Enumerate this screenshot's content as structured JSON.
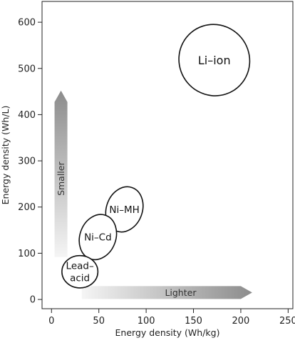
{
  "chart_data": {
    "type": "scatter",
    "xlabel": "Energy density (Wh/kg)",
    "ylabel": "Energy density (Wh/L)",
    "xlim": [
      -10,
      255
    ],
    "ylim": [
      -20,
      645
    ],
    "x_ticks": [
      0,
      50,
      100,
      150,
      200,
      250
    ],
    "y_ticks": [
      0,
      100,
      200,
      300,
      400,
      500,
      600
    ],
    "regions": [
      {
        "name": "Li–ion",
        "cx": 172,
        "cy": 518,
        "rx": 37,
        "ry": 78,
        "rotation": -40
      },
      {
        "name": "Ni–MH",
        "cx": 77,
        "cy": 195,
        "rx": 19,
        "ry": 50,
        "rotation": 20
      },
      {
        "name": "Ni–Cd",
        "cx": 49,
        "cy": 135,
        "rx": 19,
        "ry": 50,
        "rotation": 20
      },
      {
        "name": "Lead–\nacid",
        "cx": 30,
        "cy": 60,
        "rx": 19,
        "ry": 35,
        "rotation": 0
      }
    ],
    "arrows": [
      {
        "label": "Lighter",
        "direction": "right",
        "from": [
          32,
          15
        ],
        "to": [
          212,
          15
        ]
      },
      {
        "label": "Smaller",
        "direction": "up",
        "from": [
          10,
          92
        ],
        "to": [
          10,
          452
        ]
      }
    ],
    "grid": false,
    "legend": "none"
  }
}
